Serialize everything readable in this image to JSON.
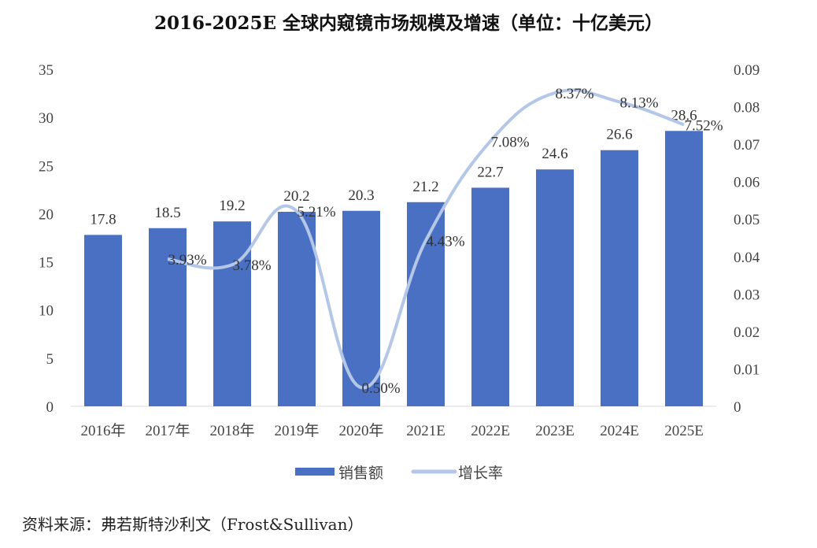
{
  "chart_data": {
    "type": "bar+line",
    "title": "2016-2025E 全球内窥镜市场规模及增速（单位：十亿美元）",
    "categories": [
      "2016年",
      "2017年",
      "2018年",
      "2019年",
      "2020年",
      "2021E",
      "2022E",
      "2023E",
      "2024E",
      "2025E"
    ],
    "series": [
      {
        "name": "销售额",
        "type": "bar",
        "axis": "left",
        "color": "#4a70c4",
        "values": [
          17.8,
          18.5,
          19.2,
          20.2,
          20.3,
          21.2,
          22.7,
          24.6,
          26.6,
          28.6
        ],
        "labels": [
          "17.8",
          "18.5",
          "19.2",
          "20.2",
          "20.3",
          "21.2",
          "22.7",
          "24.6",
          "26.6",
          "28.6"
        ]
      },
      {
        "name": "增长率",
        "type": "line",
        "axis": "right",
        "color": "#b4c7e7",
        "values": [
          null,
          0.0393,
          0.0378,
          0.0521,
          0.005,
          0.0443,
          0.0708,
          0.0837,
          0.0813,
          0.0752
        ],
        "labels": [
          null,
          "3.93%",
          "3.78%",
          "5.21%",
          "0.50%",
          "4.43%",
          "7.08%",
          "8.37%",
          "8.13%",
          "7.52%"
        ]
      }
    ],
    "y_left": {
      "range": [
        0,
        35
      ],
      "ticks": [
        "0",
        "5",
        "10",
        "15",
        "20",
        "25",
        "30",
        "35"
      ]
    },
    "y_right": {
      "range": [
        0,
        0.09
      ],
      "ticks": [
        "0",
        "0.01",
        "0.02",
        "0.03",
        "0.04",
        "0.05",
        "0.06",
        "0.07",
        "0.08",
        "0.09"
      ]
    },
    "grid": false,
    "legend": "bottom"
  },
  "source": "资料来源：弗若斯特沙利文（Frost&Sullivan）"
}
